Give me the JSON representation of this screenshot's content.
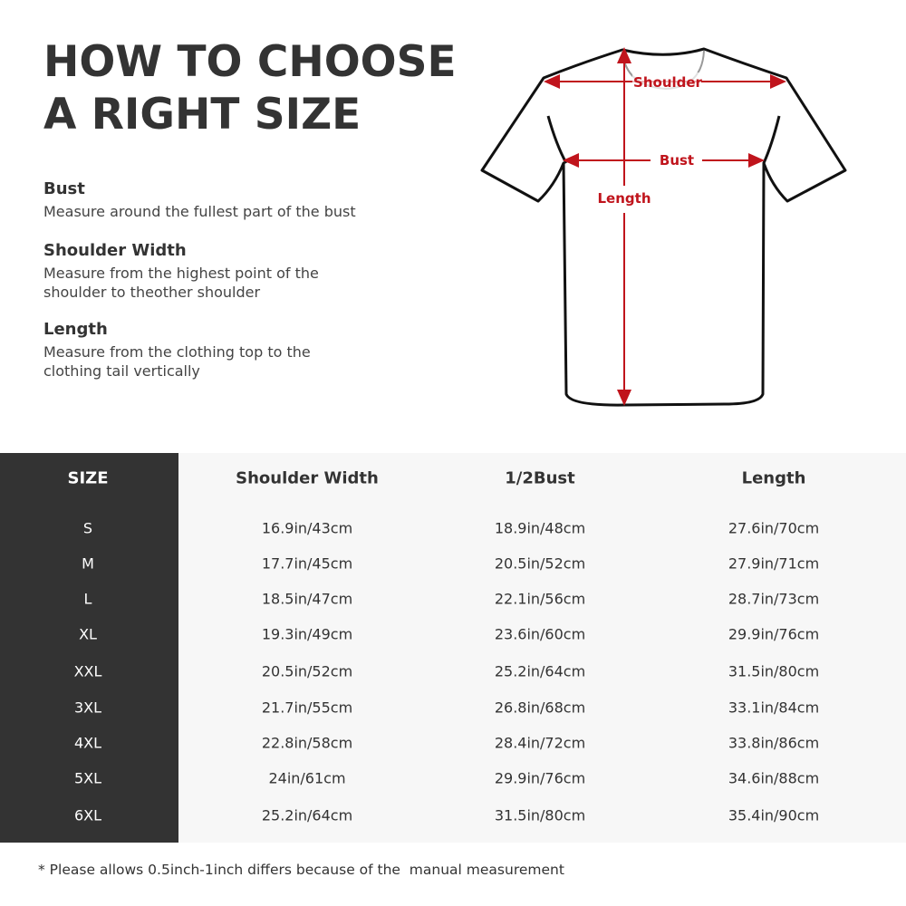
{
  "title": {
    "line1": "HOW TO CHOOSE",
    "line2": "A RIGHT SIZE"
  },
  "definitions": [
    {
      "term": "Bust",
      "desc": "Measure around the fullest part of the bust"
    },
    {
      "term": "Shoulder Width",
      "desc": "Measure from the highest point of the shoulder to theother shoulder"
    },
    {
      "term": "Length",
      "desc": "Measure from the clothing top to the clothing tail vertically"
    }
  ],
  "diagram": {
    "shoulder": "Shoulder",
    "bust": "Bust",
    "length": "Length",
    "accent": "#c0141c"
  },
  "table": {
    "headers": [
      "SIZE",
      "Shoulder Width",
      "1/2Bust",
      "Length"
    ],
    "rows": [
      [
        "S",
        "16.9in/43cm",
        "18.9in/48cm",
        "27.6in/70cm"
      ],
      [
        "M",
        "17.7in/45cm",
        "20.5in/52cm",
        "27.9in/71cm"
      ],
      [
        "L",
        "18.5in/47cm",
        "22.1in/56cm",
        "28.7in/73cm"
      ],
      [
        "XL",
        "19.3in/49cm",
        "23.6in/60cm",
        "29.9in/76cm"
      ],
      [
        "XXL",
        "20.5in/52cm",
        "25.2in/64cm",
        "31.5in/80cm"
      ],
      [
        "3XL",
        "21.7in/55cm",
        "26.8in/68cm",
        "33.1in/84cm"
      ],
      [
        "4XL",
        "22.8in/58cm",
        "28.4in/72cm",
        "33.8in/86cm"
      ],
      [
        "5XL",
        "24in/61cm",
        "29.9in/76cm",
        "34.6in/88cm"
      ],
      [
        "6XL",
        "25.2in/64cm",
        "31.5in/80cm",
        "35.4in/90cm"
      ]
    ]
  },
  "note": "* Please allows 0.5inch-1inch differs because of the  manual measurement"
}
